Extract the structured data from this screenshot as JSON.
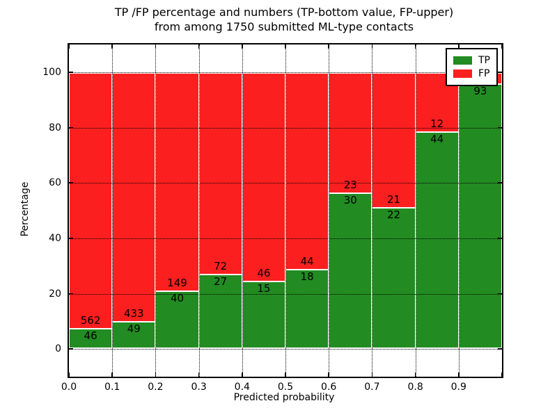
{
  "figure": {
    "title_line1": "TP /FP percentage and numbers (TP-bottom value, FP-upper)",
    "title_line2": "from among 1750 submitted ML-type contacts"
  },
  "chart_data": {
    "type": "bar",
    "stacked": true,
    "title": "TP /FP percentage and numbers (TP-bottom value, FP-upper)\nfrom among 1750 submitted ML-type contacts",
    "xlabel": "Predicted probability",
    "ylabel": "Percentage",
    "xlim": [
      0.0,
      1.0
    ],
    "ylim": [
      -10,
      110
    ],
    "grid": "dotted",
    "legend_position": "upper right",
    "colors": {
      "tp": "#228b22",
      "fp": "#fb1f1f",
      "bar_edge": "#ffffff",
      "grid": "#000000",
      "text": "#000000",
      "background": "#ffffff"
    },
    "legend": [
      {
        "name": "TP",
        "color_key": "tp"
      },
      {
        "name": "FP",
        "color_key": "fp"
      }
    ],
    "x_ticks": [
      {
        "value": 0.0,
        "label": "0.0"
      },
      {
        "value": 0.1,
        "label": "0.1"
      },
      {
        "value": 0.2,
        "label": "0.2"
      },
      {
        "value": 0.3,
        "label": "0.3"
      },
      {
        "value": 0.4,
        "label": "0.4"
      },
      {
        "value": 0.5,
        "label": "0.5"
      },
      {
        "value": 0.6,
        "label": "0.6"
      },
      {
        "value": 0.7,
        "label": "0.7"
      },
      {
        "value": 0.8,
        "label": "0.8"
      },
      {
        "value": 0.9,
        "label": "0.9"
      },
      {
        "value": 1.0,
        "label": ""
      }
    ],
    "y_ticks": [
      {
        "value": 0,
        "label": "0"
      },
      {
        "value": 20,
        "label": "20"
      },
      {
        "value": 40,
        "label": "40"
      },
      {
        "value": 60,
        "label": "60"
      },
      {
        "value": 80,
        "label": "80"
      },
      {
        "value": 100,
        "label": "100"
      }
    ],
    "bin_width": 0.1,
    "bars": [
      {
        "x0": 0.0,
        "tp_count": 46,
        "fp_count": 562,
        "tp_pct": 7.57
      },
      {
        "x0": 0.1,
        "tp_count": 49,
        "fp_count": 433,
        "tp_pct": 10.17
      },
      {
        "x0": 0.2,
        "tp_count": 40,
        "fp_count": 149,
        "tp_pct": 21.16
      },
      {
        "x0": 0.3,
        "tp_count": 27,
        "fp_count": 72,
        "tp_pct": 27.27
      },
      {
        "x0": 0.4,
        "tp_count": 15,
        "fp_count": 46,
        "tp_pct": 24.59
      },
      {
        "x0": 0.5,
        "tp_count": 18,
        "fp_count": 44,
        "tp_pct": 29.03
      },
      {
        "x0": 0.6,
        "tp_count": 30,
        "fp_count": 23,
        "tp_pct": 56.6
      },
      {
        "x0": 0.7,
        "tp_count": 22,
        "fp_count": 21,
        "tp_pct": 51.16
      },
      {
        "x0": 0.8,
        "tp_count": 44,
        "fp_count": 12,
        "tp_pct": 78.57
      },
      {
        "x0": 0.9,
        "tp_count": 93,
        "fp_count": null,
        "tp_pct": 95.88
      }
    ]
  }
}
